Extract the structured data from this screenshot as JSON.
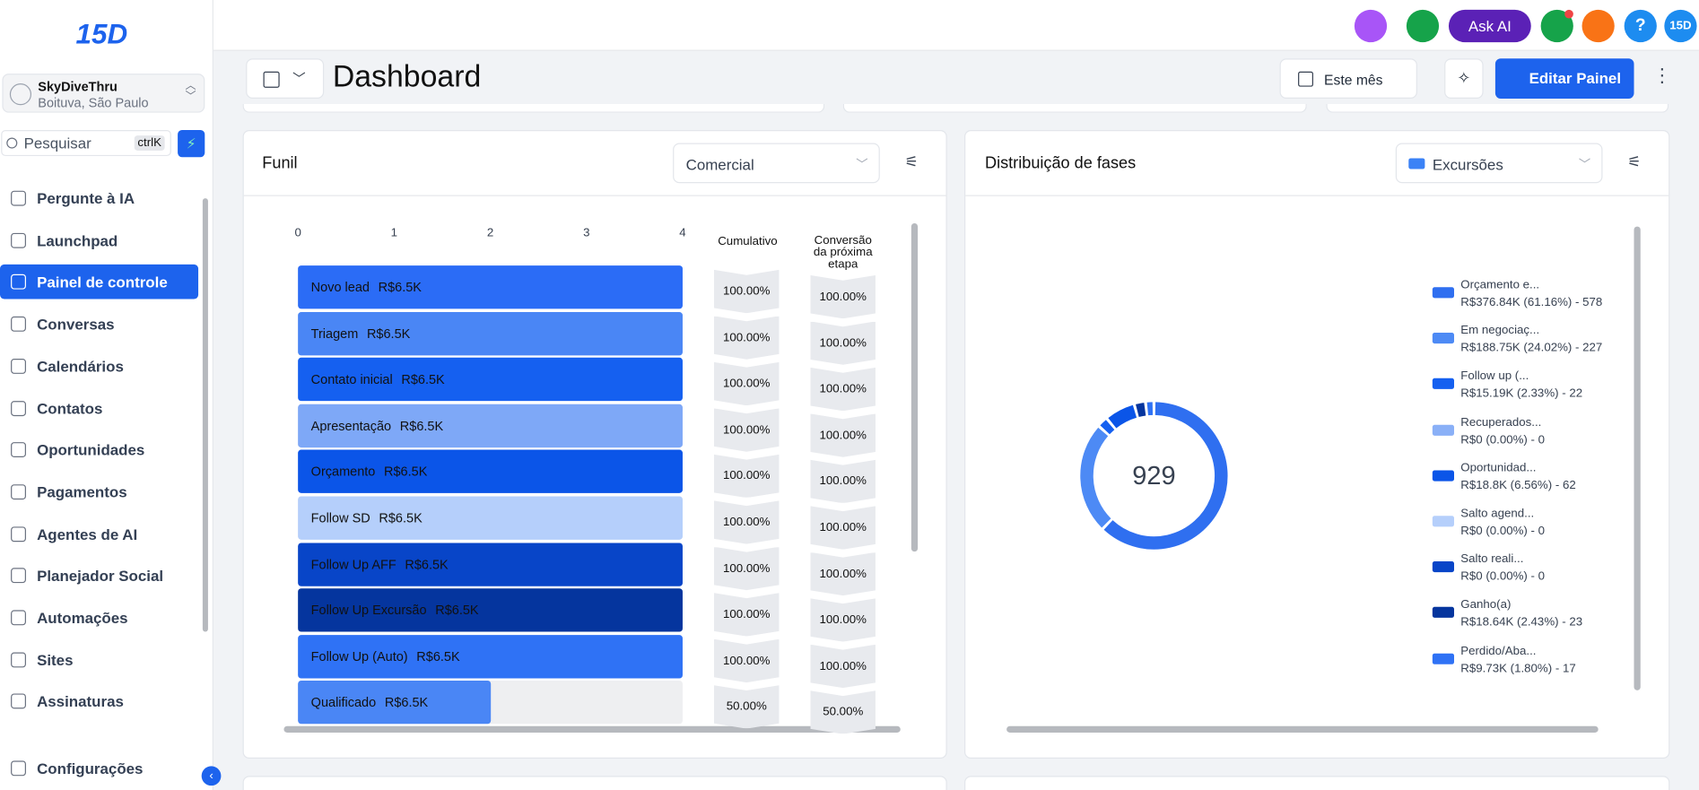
{
  "logo": "15D",
  "sidebar": {
    "account": {
      "name": "SkyDiveThru",
      "location": "Boituva, São Paulo"
    },
    "search": {
      "placeholder": "Pesquisar",
      "shortcut": "ctrlK"
    },
    "nav": [
      {
        "label": "Pergunte à IA"
      },
      {
        "label": "Launchpad"
      },
      {
        "label": "Painel de controle",
        "active": true
      },
      {
        "label": "Conversas"
      },
      {
        "label": "Calendários"
      },
      {
        "label": "Contatos"
      },
      {
        "label": "Oportunidades"
      },
      {
        "label": "Pagamentos"
      },
      {
        "label": "Agentes de AI"
      },
      {
        "label": "Planejador Social"
      },
      {
        "label": "Automações"
      },
      {
        "label": "Sites"
      },
      {
        "label": "Assinaturas"
      }
    ],
    "settings": "Configurações"
  },
  "topbar": {
    "ask_ai": "Ask AI",
    "profile": "15D"
  },
  "header": {
    "title": "Dashboard",
    "date_filter": "Este mês",
    "edit": "Editar Painel"
  },
  "funnel": {
    "title": "Funil",
    "pipeline": "Comercial",
    "type": "bar",
    "xlim": [
      0,
      4
    ],
    "xticks": [
      0,
      1,
      2,
      3,
      4
    ],
    "columns": {
      "cumulative": "Cumulativo",
      "conversion": [
        "Conversão",
        "da próxima",
        "etapa"
      ]
    },
    "stages": [
      {
        "name": "Novo lead",
        "value": 4,
        "amount": "R$6.5K",
        "cumulative": "100.00%",
        "conversion": "100.00%",
        "color": "#2b6cf6"
      },
      {
        "name": "Triagem",
        "value": 4,
        "amount": "R$6.5K",
        "cumulative": "100.00%",
        "conversion": "100.00%",
        "color": "#4a86f5"
      },
      {
        "name": "Contato inicial",
        "value": 4,
        "amount": "R$6.5K",
        "cumulative": "100.00%",
        "conversion": "100.00%",
        "color": "#1560f0"
      },
      {
        "name": "Apresentação",
        "value": 4,
        "amount": "R$6.5K",
        "cumulative": "100.00%",
        "conversion": "100.00%",
        "color": "#7ea8f7"
      },
      {
        "name": "Orçamento",
        "value": 4,
        "amount": "R$6.5K",
        "cumulative": "100.00%",
        "conversion": "100.00%",
        "color": "#0b55e8"
      },
      {
        "name": "Follow SD",
        "value": 4,
        "amount": "R$6.5K",
        "cumulative": "100.00%",
        "conversion": "100.00%",
        "color": "#b5cffb"
      },
      {
        "name": "Follow Up AFF",
        "value": 4,
        "amount": "R$6.5K",
        "cumulative": "100.00%",
        "conversion": "100.00%",
        "color": "#0845c8"
      },
      {
        "name": "Follow Up Excursão",
        "value": 4,
        "amount": "R$6.5K",
        "cumulative": "100.00%",
        "conversion": "100.00%",
        "color": "#05359e"
      },
      {
        "name": "Follow Up (Auto)",
        "value": 4,
        "amount": "R$6.5K",
        "cumulative": "100.00%",
        "conversion": "100.00%",
        "color": "#2f72f5"
      },
      {
        "name": "Qualificado",
        "value": 2,
        "amount": "R$6.5K",
        "cumulative": "50.00%",
        "conversion": "50.00%",
        "color": "#4a86f5"
      }
    ]
  },
  "phases": {
    "title": "Distribuição de fases",
    "pipeline": "Excursões",
    "type": "pie",
    "total": 929,
    "segments": [
      {
        "name": "Orçamento e...",
        "label": "R$376.84K (61.16%) - 578",
        "value": 578,
        "color": "#2f6ff0"
      },
      {
        "name": "Em negociaç...",
        "label": "R$188.75K (24.02%) - 227",
        "value": 227,
        "color": "#4d8af5"
      },
      {
        "name": "Follow up (...",
        "label": "R$15.19K (2.33%) - 22",
        "value": 22,
        "color": "#1560f0"
      },
      {
        "name": "Recuperados...",
        "label": "R$0 (0.00%) - 0",
        "value": 0,
        "color": "#8ab0f7"
      },
      {
        "name": "Oportunidad...",
        "label": "R$18.8K (6.56%) - 62",
        "value": 62,
        "color": "#0b55e8"
      },
      {
        "name": "Salto agend...",
        "label": "R$0 (0.00%) - 0",
        "value": 0,
        "color": "#b5cffb"
      },
      {
        "name": "Salto reali...",
        "label": "R$0 (0.00%) - 0",
        "value": 0,
        "color": "#0845c8"
      },
      {
        "name": "Ganho(a)",
        "label": "R$18.64K (2.43%) - 23",
        "value": 23,
        "color": "#05359e"
      },
      {
        "name": "Perdido/Aba...",
        "label": "R$9.73K (1.80%) - 17",
        "value": 17,
        "color": "#2f72f5"
      }
    ]
  }
}
